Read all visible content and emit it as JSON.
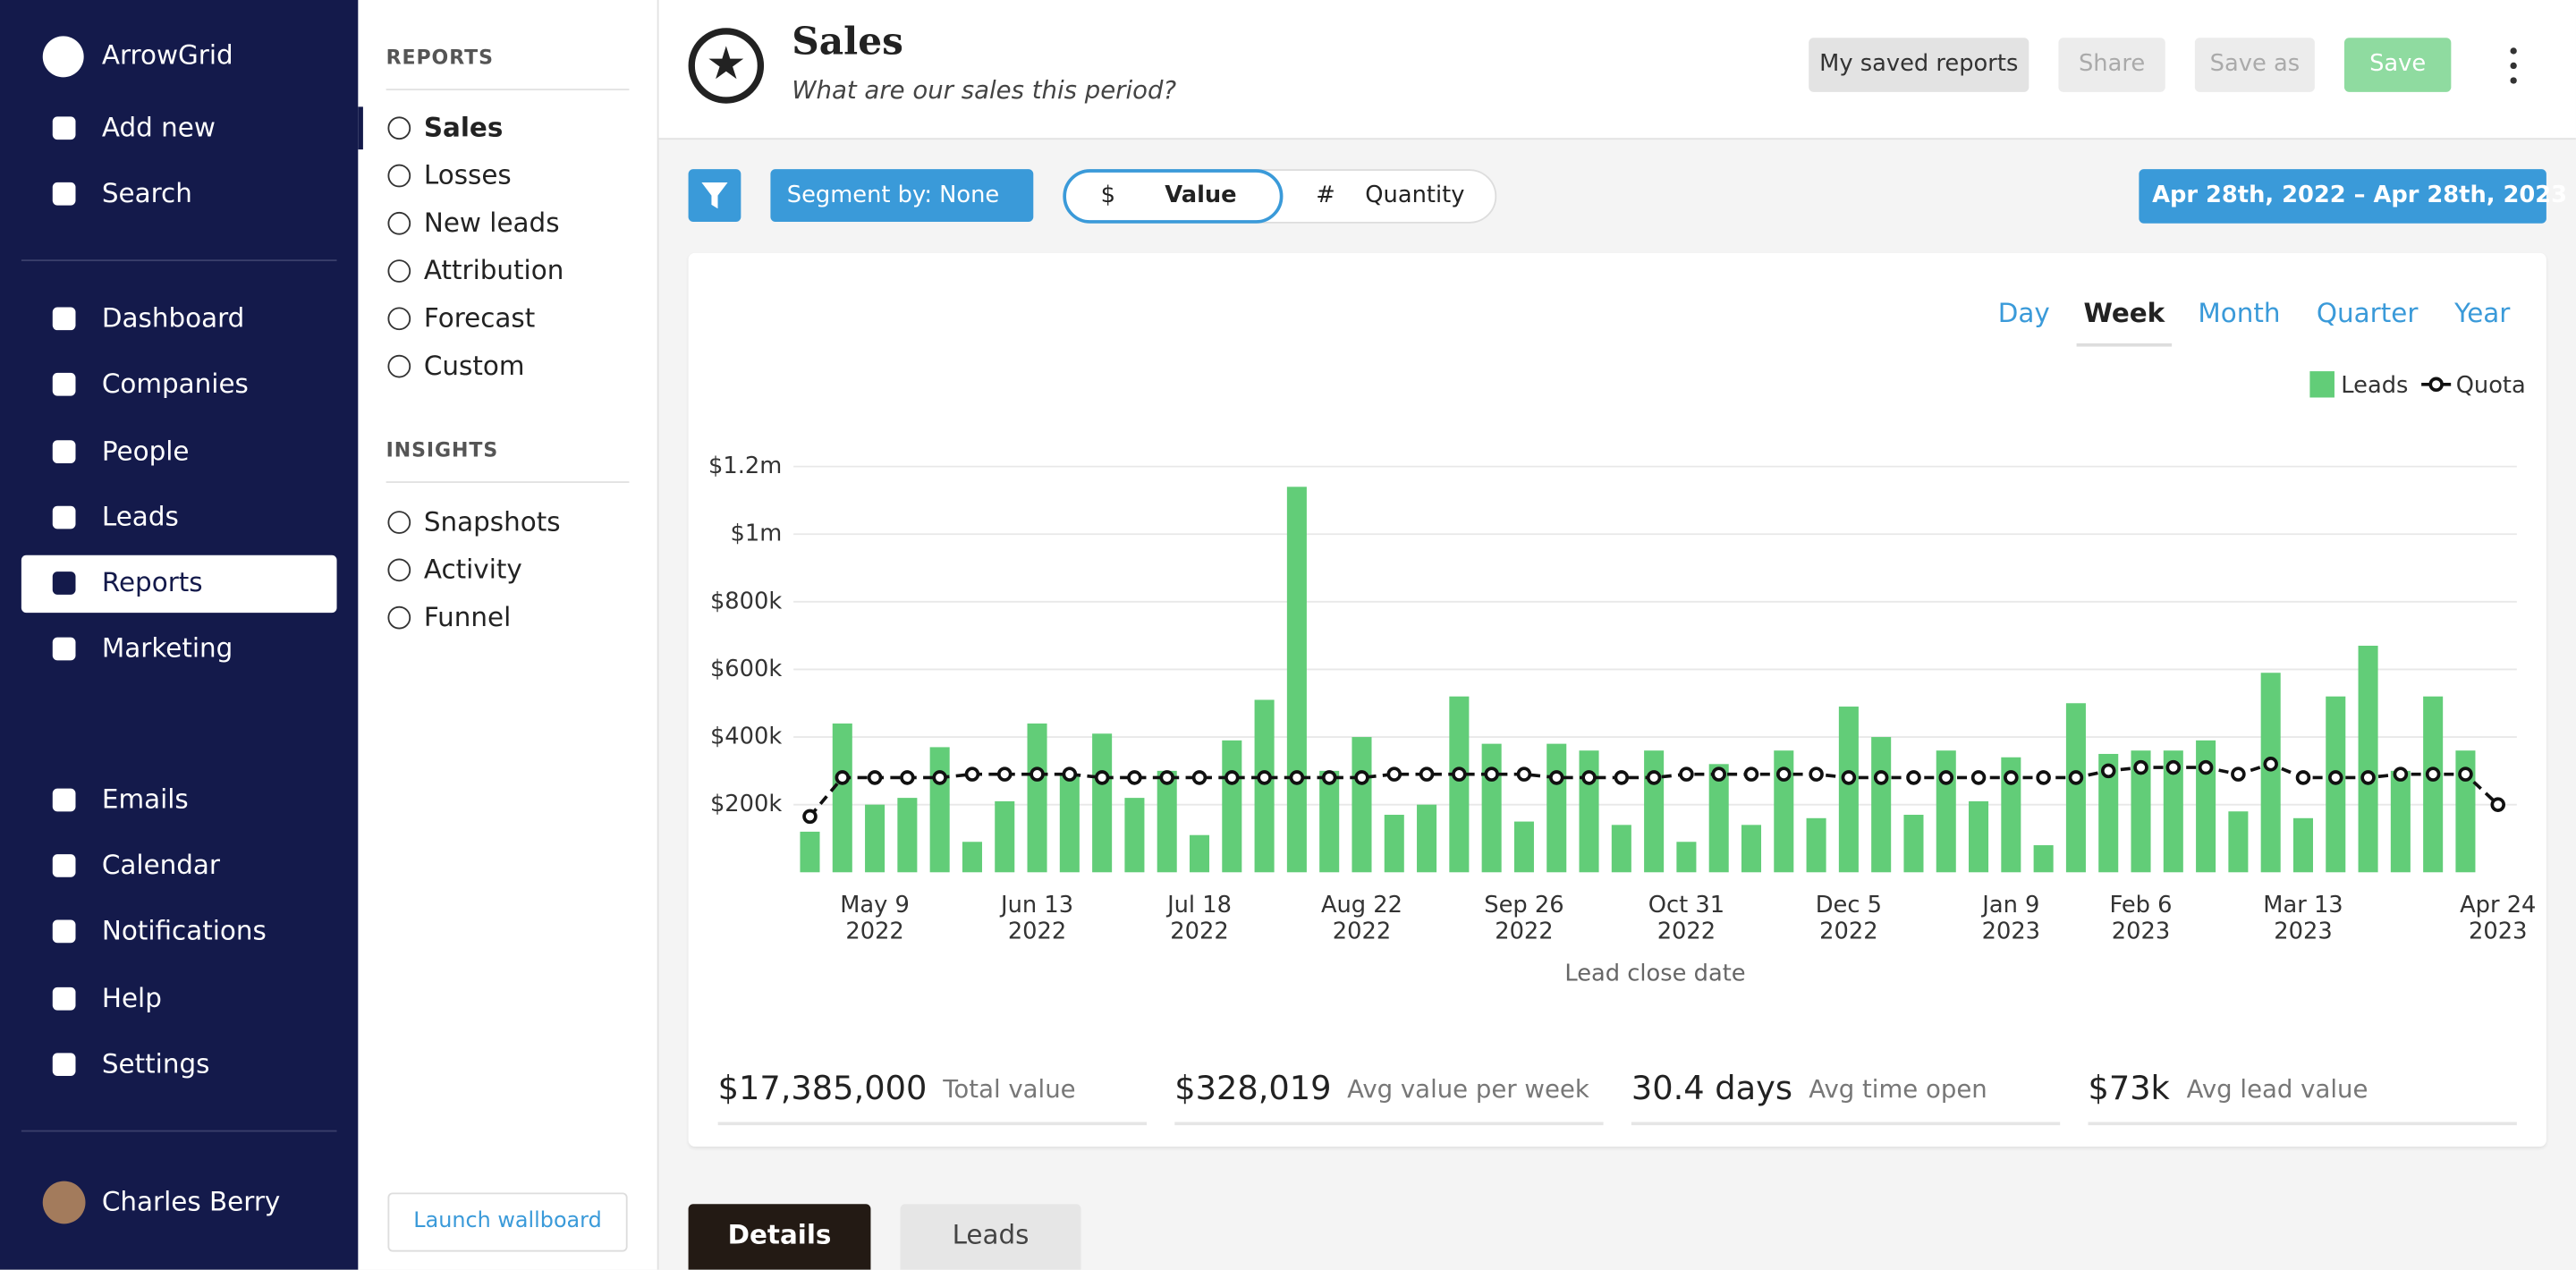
{
  "sidebar": {
    "brand": "ArrowGrid",
    "actions": [
      "Add new",
      "Search"
    ],
    "nav": [
      "Dashboard",
      "Companies",
      "People",
      "Leads",
      "Reports",
      "Marketing"
    ],
    "nav2": [
      "Emails",
      "Calendar",
      "Notifications",
      "Help",
      "Settings"
    ],
    "user": "Charles Berry"
  },
  "subnav": {
    "reports_heading": "REPORTS",
    "reports": [
      "Sales",
      "Losses",
      "New leads",
      "Attribution",
      "Forecast",
      "Custom"
    ],
    "insights_heading": "INSIGHTS",
    "insights": [
      "Snapshots",
      "Activity",
      "Funnel"
    ],
    "button": "Launch wallboard"
  },
  "header": {
    "title": "Sales",
    "subtitle": "What are our sales this period?",
    "buttons": [
      "My saved reports",
      "Share",
      "Save as",
      "Save"
    ]
  },
  "toolbar": {
    "segment": "Segment by: None",
    "toggle": [
      {
        "symbol": "$",
        "label": "Value"
      },
      {
        "symbol": "#",
        "label": "Quantity"
      }
    ],
    "date_range": "Apr 28th, 2022 – Apr 28th, 2023"
  },
  "periods": [
    "Day",
    "Week",
    "Month",
    "Quarter",
    "Year"
  ],
  "stats": [
    {
      "value": "$17,385,000",
      "label": "Total value"
    },
    {
      "value": "$328,019",
      "label": "Avg value per week"
    },
    {
      "value": "30.4 days",
      "label": "Avg time open"
    },
    {
      "value": "$73k",
      "label": "Avg lead value"
    }
  ],
  "tabs": [
    "Details",
    "Leads"
  ],
  "chart_data": {
    "type": "bar",
    "x_label": "Lead close date",
    "categories": [
      null,
      null,
      "May 9\n2022",
      null,
      null,
      null,
      null,
      "Jun 13\n2022",
      null,
      null,
      null,
      null,
      "Jul 18\n2022",
      null,
      null,
      null,
      null,
      "Aug 22\n2022",
      null,
      null,
      null,
      null,
      "Sep 26\n2022",
      null,
      null,
      null,
      null,
      "Oct 31\n2022",
      null,
      null,
      null,
      null,
      "Dec 5\n2022",
      null,
      null,
      null,
      null,
      "Jan 9\n2023",
      null,
      null,
      null,
      "Feb 6\n2023",
      null,
      null,
      null,
      null,
      "Mar 13\n2023",
      null,
      null,
      null,
      null,
      null,
      "Apr 24\n2023"
    ],
    "series": [
      {
        "name": "Leads",
        "type": "bar",
        "color": "#62cd78",
        "values": [
          120000,
          440000,
          200000,
          220000,
          370000,
          90000,
          210000,
          440000,
          290000,
          410000,
          220000,
          300000,
          110000,
          390000,
          510000,
          1140000,
          300000,
          400000,
          170000,
          200000,
          520000,
          380000,
          150000,
          380000,
          360000,
          140000,
          360000,
          90000,
          320000,
          140000,
          360000,
          160000,
          490000,
          400000,
          170000,
          360000,
          210000,
          340000,
          80000,
          500000,
          350000,
          360000,
          360000,
          390000,
          180000,
          590000,
          160000,
          520000,
          670000,
          300000,
          520000,
          360000,
          null
        ]
      },
      {
        "name": "Quota",
        "type": "line",
        "color": "#111111",
        "values": [
          165000,
          280000,
          280000,
          280000,
          280000,
          290000,
          290000,
          290000,
          290000,
          280000,
          280000,
          280000,
          280000,
          280000,
          280000,
          280000,
          280000,
          280000,
          290000,
          290000,
          290000,
          290000,
          290000,
          280000,
          280000,
          280000,
          280000,
          290000,
          290000,
          290000,
          290000,
          290000,
          280000,
          280000,
          280000,
          280000,
          280000,
          280000,
          280000,
          280000,
          300000,
          310000,
          310000,
          310000,
          290000,
          320000,
          280000,
          280000,
          280000,
          290000,
          290000,
          290000,
          200000
        ]
      }
    ],
    "ylim": [
      0,
      1200000
    ],
    "yticks": [
      {
        "value": 200000,
        "label": "$200k"
      },
      {
        "value": 400000,
        "label": "$400k"
      },
      {
        "value": 600000,
        "label": "$600k"
      },
      {
        "value": 800000,
        "label": "$800k"
      },
      {
        "value": 1000000,
        "label": "$1m"
      },
      {
        "value": 1200000,
        "label": "$1.2m"
      }
    ],
    "grid": true,
    "legend": "top-right"
  }
}
